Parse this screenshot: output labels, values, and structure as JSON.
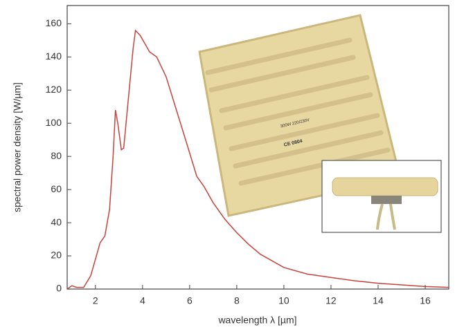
{
  "chart_data": {
    "type": "line",
    "x_label": "wavelength λ [µm]",
    "y_label": "spectral power density [W/µm]",
    "x": [
      0.8,
      1.0,
      1.2,
      1.5,
      1.8,
      2.0,
      2.2,
      2.4,
      2.6,
      2.75,
      2.85,
      2.95,
      3.1,
      3.2,
      3.4,
      3.6,
      3.7,
      3.9,
      4.1,
      4.3,
      4.6,
      5.0,
      5.5,
      6.0,
      6.3,
      6.6,
      7.0,
      7.5,
      8.0,
      8.5,
      9.0,
      9.5,
      10,
      11,
      12,
      13,
      14,
      15,
      16,
      17
    ],
    "series": [
      {
        "color": "#c8413a",
        "values": [
          0,
          2,
          1,
          1,
          8,
          18,
          28,
          32,
          48,
          80,
          108,
          100,
          84,
          85,
          115,
          145,
          156,
          153,
          148,
          143,
          140,
          128,
          105,
          82,
          68,
          62,
          52,
          42,
          34,
          27,
          21,
          17,
          13,
          9,
          7,
          5,
          3.5,
          2.5,
          1.5,
          1
        ]
      }
    ],
    "xlim": [
      0.8,
      17
    ],
    "xticks": [
      2,
      4,
      6,
      8,
      10,
      12,
      14,
      16
    ],
    "ylim": [
      0,
      171
    ],
    "yticks": [
      0,
      20,
      40,
      60,
      80,
      100,
      120,
      140,
      160
    ],
    "annotations": [
      "300W 220/230V",
      "CE 0804"
    ]
  }
}
